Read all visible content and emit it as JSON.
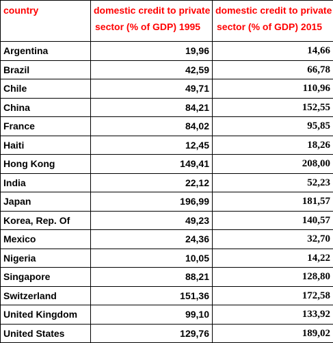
{
  "headers": {
    "country": "country",
    "col_1995_line1": "domestic credit to private",
    "col_1995_line2": "sector (% of GDP) 1995",
    "col_2015_line1": "domestic credit to private",
    "col_2015_line2": "sector (% of GDP) 2015"
  },
  "colors": {
    "header_text": "#ff0000",
    "body_text": "#000000",
    "border": "#000000"
  },
  "rows": [
    {
      "country": "Argentina",
      "v1995": "19,96",
      "v2015": "14,66"
    },
    {
      "country": "Brazil",
      "v1995": "42,59",
      "v2015": "66,78"
    },
    {
      "country": "Chile",
      "v1995": "49,71",
      "v2015": "110,96"
    },
    {
      "country": "China",
      "v1995": "84,21",
      "v2015": "152,55"
    },
    {
      "country": "France",
      "v1995": "84,02",
      "v2015": "95,85"
    },
    {
      "country": "Haiti",
      "v1995": "12,45",
      "v2015": "18,26"
    },
    {
      "country": "Hong Kong",
      "v1995": "149,41",
      "v2015": "208,00"
    },
    {
      "country": "India",
      "v1995": "22,12",
      "v2015": "52,23"
    },
    {
      "country": "Japan",
      "v1995": "196,99",
      "v2015": "181,57"
    },
    {
      "country": "Korea, Rep. Of",
      "v1995": "49,23",
      "v2015": "140,57"
    },
    {
      "country": "Mexico",
      "v1995": "24,36",
      "v2015": "32,70"
    },
    {
      "country": "Nigeria",
      "v1995": "10,05",
      "v2015": "14,22"
    },
    {
      "country": "Singapore",
      "v1995": "88,21",
      "v2015": "128,80"
    },
    {
      "country": "Switzerland",
      "v1995": "151,36",
      "v2015": "172,58"
    },
    {
      "country": "United Kingdom",
      "v1995": "99,10",
      "v2015": "133,92"
    },
    {
      "country": "United States",
      "v1995": "129,76",
      "v2015": "189,02"
    }
  ]
}
